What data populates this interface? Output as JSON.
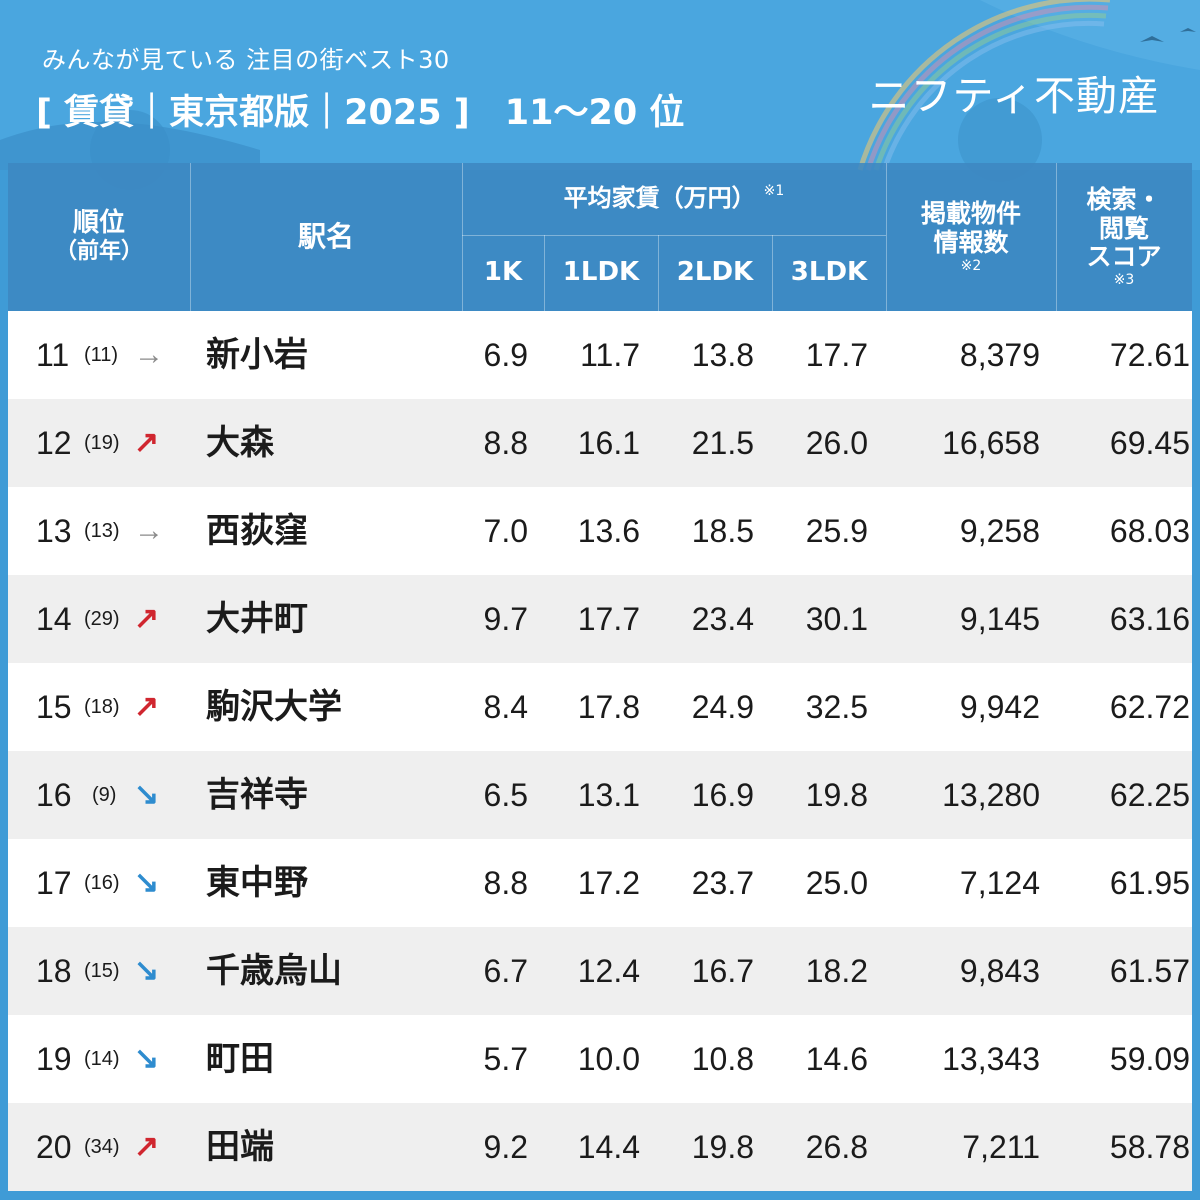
{
  "header": {
    "subtitle": "みんなが見ている 注目の街ベスト30",
    "title": "[ 賃貸｜東京都版｜2025 ]　11〜20 位",
    "brand": "ニフティ不動産"
  },
  "columns": {
    "rank": "順位",
    "rank_prev": "（前年）",
    "station": "駅名",
    "rent_group": "平均家賃（万円）",
    "rent_note": "※1",
    "k1": "1K",
    "ldk1": "1LDK",
    "ldk2": "2LDK",
    "ldk3": "3LDK",
    "listings_line1": "掲載物件",
    "listings_line2": "情報数",
    "listings_note": "※2",
    "score_line1": "検索・",
    "score_line2": "閲覧",
    "score_line3": "スコア",
    "score_note": "※3"
  },
  "arrows": {
    "up": "↗",
    "down": "↘",
    "same": "→"
  },
  "colors": {
    "up": "#d0262f",
    "down": "#2e8ccf",
    "same": "#8a8a8a",
    "header_bg": "#3d88c2",
    "body_bg": "#3f9bd6"
  },
  "rows": [
    {
      "rank": "11",
      "prev": "(11)",
      "trend": "same",
      "station": "新小岩",
      "k1": "6.9",
      "ldk1": "11.7",
      "ldk2": "13.8",
      "ldk3": "17.7",
      "listings": "8,379",
      "score": "72.61"
    },
    {
      "rank": "12",
      "prev": "(19)",
      "trend": "up",
      "station": "大森",
      "k1": "8.8",
      "ldk1": "16.1",
      "ldk2": "21.5",
      "ldk3": "26.0",
      "listings": "16,658",
      "score": "69.45"
    },
    {
      "rank": "13",
      "prev": "(13)",
      "trend": "same",
      "station": "西荻窪",
      "k1": "7.0",
      "ldk1": "13.6",
      "ldk2": "18.5",
      "ldk3": "25.9",
      "listings": "9,258",
      "score": "68.03"
    },
    {
      "rank": "14",
      "prev": "(29)",
      "trend": "up",
      "station": "大井町",
      "k1": "9.7",
      "ldk1": "17.7",
      "ldk2": "23.4",
      "ldk3": "30.1",
      "listings": "9,145",
      "score": "63.16"
    },
    {
      "rank": "15",
      "prev": "(18)",
      "trend": "up",
      "station": "駒沢大学",
      "k1": "8.4",
      "ldk1": "17.8",
      "ldk2": "24.9",
      "ldk3": "32.5",
      "listings": "9,942",
      "score": "62.72"
    },
    {
      "rank": "16",
      "prev": "(9)",
      "trend": "down",
      "station": "吉祥寺",
      "k1": "6.5",
      "ldk1": "13.1",
      "ldk2": "16.9",
      "ldk3": "19.8",
      "listings": "13,280",
      "score": "62.25"
    },
    {
      "rank": "17",
      "prev": "(16)",
      "trend": "down",
      "station": "東中野",
      "k1": "8.8",
      "ldk1": "17.2",
      "ldk2": "23.7",
      "ldk3": "25.0",
      "listings": "7,124",
      "score": "61.95"
    },
    {
      "rank": "18",
      "prev": "(15)",
      "trend": "down",
      "station": "千歳烏山",
      "k1": "6.7",
      "ldk1": "12.4",
      "ldk2": "16.7",
      "ldk3": "18.2",
      "listings": "9,843",
      "score": "61.57"
    },
    {
      "rank": "19",
      "prev": "(14)",
      "trend": "down",
      "station": "町田",
      "k1": "5.7",
      "ldk1": "10.0",
      "ldk2": "10.8",
      "ldk3": "14.6",
      "listings": "13,343",
      "score": "59.09"
    },
    {
      "rank": "20",
      "prev": "(34)",
      "trend": "up",
      "station": "田端",
      "k1": "9.2",
      "ldk1": "14.4",
      "ldk2": "19.8",
      "ldk3": "26.8",
      "listings": "7,211",
      "score": "58.78"
    }
  ]
}
